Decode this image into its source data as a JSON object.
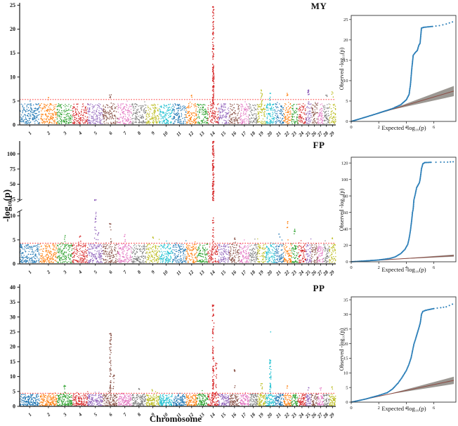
{
  "figure": {
    "xlabel": "Chromosome",
    "ylabel": "-log₁₀(p)",
    "qq_xlabel": "Expected -log₁₀(p)",
    "qq_ylabel": "Observed -log₁₀(p)"
  },
  "colors": {
    "cycle": [
      "#1f77b4",
      "#ff7f0e",
      "#2ca02c",
      "#d62728",
      "#9467bd",
      "#8c564b",
      "#e377c2",
      "#7f7f7f",
      "#bcbd22",
      "#17becf"
    ],
    "threshold_line": "#ff1a1a",
    "qq_points": "#1f77b4",
    "qq_line": "#8c4a42",
    "qq_band": "#8b8680",
    "axis": "#1a1a1a"
  },
  "chromosome_labels": [
    "1",
    "2",
    "3",
    "4",
    "5",
    "6",
    "7",
    "8",
    "9",
    "10",
    "11",
    "12",
    "13",
    "14",
    "15",
    "16",
    "17",
    "18",
    "19",
    "20",
    "21",
    "22",
    "23",
    "24",
    "25",
    "26",
    "27",
    "28",
    "29"
  ],
  "chromosome_rel_lengths": [
    158,
    136,
    121,
    120,
    120,
    117,
    110,
    113,
    105,
    103,
    106,
    87,
    84,
    84,
    85,
    81,
    75,
    66,
    64,
    72,
    69,
    61,
    52,
    62,
    42,
    51,
    45,
    46,
    51
  ],
  "chart_data": [
    {
      "type": "scatter",
      "title": "MY",
      "seed": 7,
      "manhattan": {
        "ylim": [
          0,
          25.5
        ],
        "yticks": [
          0,
          5,
          10,
          15,
          20,
          25
        ],
        "threshold": 5.3,
        "base": 4.2,
        "peaks": [
          {
            "chr": 2,
            "top": 5.7,
            "n": 3
          },
          {
            "chr": 6,
            "top": 6.3,
            "n": 6
          },
          {
            "chr": 12,
            "top": 6.2,
            "n": 3
          },
          {
            "chr": 14,
            "top": 24.7,
            "n": 120
          },
          {
            "chr": 19,
            "top": 7.3,
            "n": 12
          },
          {
            "chr": 20,
            "top": 6.6,
            "n": 7
          },
          {
            "chr": 22,
            "top": 6.6,
            "n": 4
          },
          {
            "chr": 25,
            "top": 7.3,
            "n": 14
          },
          {
            "chr": 28,
            "top": 6.2,
            "n": 3
          },
          {
            "chr": 29,
            "top": 6.9,
            "n": 4
          }
        ]
      },
      "qq": {
        "xlim": [
          0,
          7.6
        ],
        "xticks": [
          0,
          2,
          4,
          6
        ],
        "ylim": [
          0,
          26
        ],
        "yticks": [
          0,
          5,
          10,
          15,
          20,
          25
        ],
        "curve": [
          [
            0,
            0
          ],
          [
            1,
            1
          ],
          [
            2,
            2.05
          ],
          [
            3,
            3.15
          ],
          [
            3.6,
            4.1
          ],
          [
            4,
            5.3
          ],
          [
            4.2,
            6.6
          ],
          [
            4.3,
            9
          ],
          [
            4.4,
            13
          ],
          [
            4.5,
            16.2
          ],
          [
            4.65,
            16.9
          ],
          [
            4.8,
            17.4
          ],
          [
            4.9,
            18.6
          ],
          [
            5,
            19.2
          ],
          [
            5.05,
            21
          ],
          [
            5.1,
            22.9
          ],
          [
            5.3,
            23.1
          ],
          [
            5.9,
            23.3
          ],
          [
            6.4,
            23.5
          ],
          [
            6.9,
            23.9
          ],
          [
            7.35,
            24.4
          ]
        ],
        "band": {
          "x0": 2.6,
          "x1": 7.45,
          "y_lo": 6.2,
          "y_hi": 8.7
        },
        "line_end": 7.45
      }
    },
    {
      "type": "scatter",
      "title": "FP",
      "seed": 13,
      "manhattan": {
        "segments": [
          {
            "domain": [
              0,
              11
            ],
            "range": [
              0,
              0.43
            ]
          },
          {
            "domain": [
              23,
              121
            ],
            "range": [
              0.515,
              1
            ]
          }
        ],
        "yticks": [
          0,
          5,
          10,
          25,
          50,
          75,
          100
        ],
        "threshold": 4.3,
        "base": 3.9,
        "peaks": [
          {
            "chr": 3,
            "top": 5.9,
            "n": 3
          },
          {
            "chr": 4,
            "top": 5.8,
            "n": 4
          },
          {
            "chr": 5,
            "top": 24.5,
            "n": 55
          },
          {
            "chr": 5,
            "offset": 0.18,
            "top": 6.5,
            "n": 5
          },
          {
            "chr": 6,
            "top": 8.4,
            "n": 9
          },
          {
            "chr": 7,
            "top": 6.1,
            "n": 5
          },
          {
            "chr": 9,
            "top": 5.6,
            "n": 3
          },
          {
            "chr": 14,
            "top": 120.5,
            "n": 140
          },
          {
            "chr": 16,
            "top": 5.4,
            "n": 3
          },
          {
            "chr": 21,
            "top": 6.2,
            "n": 3
          },
          {
            "chr": 22,
            "top": 8.8,
            "n": 6
          },
          {
            "chr": 23,
            "top": 7.2,
            "n": 5
          },
          {
            "chr": 29,
            "top": 5.4,
            "n": 3
          }
        ]
      },
      "qq": {
        "xlim": [
          0,
          7.6
        ],
        "xticks": [
          0,
          2,
          4,
          6
        ],
        "ylim": [
          0,
          127
        ],
        "yticks": [
          0,
          20,
          40,
          60,
          80,
          100,
          120
        ],
        "curve": [
          [
            0,
            0
          ],
          [
            1,
            1
          ],
          [
            2,
            2.2
          ],
          [
            2.8,
            4
          ],
          [
            3.2,
            6
          ],
          [
            3.6,
            10
          ],
          [
            3.9,
            15
          ],
          [
            4.1,
            21
          ],
          [
            4.2,
            28
          ],
          [
            4.3,
            38
          ],
          [
            4.4,
            52
          ],
          [
            4.45,
            60
          ],
          [
            4.5,
            64
          ],
          [
            4.55,
            75
          ],
          [
            4.65,
            82
          ],
          [
            4.75,
            90
          ],
          [
            4.85,
            93
          ],
          [
            4.95,
            96
          ],
          [
            5,
            100
          ],
          [
            5.05,
            106
          ],
          [
            5.1,
            113
          ],
          [
            5.2,
            119
          ],
          [
            5.35,
            120.5
          ],
          [
            5.8,
            120.8
          ],
          [
            6.5,
            121
          ],
          [
            7,
            121
          ],
          [
            7.4,
            121.5
          ]
        ],
        "band": {
          "x0": 2.6,
          "x1": 7.45,
          "y_lo": 6.2,
          "y_hi": 8.7
        },
        "line_end": 7.45
      }
    },
    {
      "type": "scatter",
      "title": "PP",
      "seed": 21,
      "manhattan": {
        "ylim": [
          0,
          41
        ],
        "yticks": [
          0,
          5,
          10,
          15,
          20,
          25,
          30,
          35,
          40
        ],
        "threshold": 4.4,
        "base": 3.9,
        "peaks": [
          {
            "chr": 3,
            "top": 7,
            "n": 8
          },
          {
            "chr": 6,
            "top": 24.5,
            "n": 60
          },
          {
            "chr": 6,
            "offset": 0.22,
            "top": 10.5,
            "n": 10
          },
          {
            "chr": 8,
            "top": 6,
            "n": 3
          },
          {
            "chr": 9,
            "top": 5.6,
            "n": 3
          },
          {
            "chr": 14,
            "top": 34,
            "n": 80
          },
          {
            "chr": 14,
            "offset": 0.28,
            "top": 14.5,
            "n": 16
          },
          {
            "chr": 16,
            "top": 12.3,
            "n": 7
          },
          {
            "chr": 19,
            "top": 7.6,
            "n": 7
          },
          {
            "chr": 20,
            "top": 15.6,
            "n": 34
          },
          {
            "chr": 20,
            "top": 25,
            "n": 1
          },
          {
            "chr": 22,
            "top": 6.8,
            "n": 3
          },
          {
            "chr": 25,
            "top": 6.3,
            "n": 3
          },
          {
            "chr": 27,
            "top": 6.2,
            "n": 3
          },
          {
            "chr": 29,
            "top": 6.6,
            "n": 3
          }
        ]
      },
      "qq": {
        "xlim": [
          0,
          7.6
        ],
        "xticks": [
          0,
          2,
          4,
          6
        ],
        "ylim": [
          0,
          36
        ],
        "yticks": [
          0,
          5,
          10,
          15,
          20,
          25,
          30,
          35
        ],
        "curve": [
          [
            0,
            0
          ],
          [
            1,
            1
          ],
          [
            2,
            2.3
          ],
          [
            2.6,
            3.2
          ],
          [
            3,
            4.5
          ],
          [
            3.4,
            6.5
          ],
          [
            3.7,
            8.5
          ],
          [
            4,
            10.8
          ],
          [
            4.2,
            13
          ],
          [
            4.35,
            15.2
          ],
          [
            4.45,
            17.5
          ],
          [
            4.55,
            19.8
          ],
          [
            4.7,
            22
          ],
          [
            4.8,
            23.6
          ],
          [
            4.9,
            25.2
          ],
          [
            5,
            26.8
          ],
          [
            5.05,
            28.2
          ],
          [
            5.1,
            30
          ],
          [
            5.2,
            31
          ],
          [
            5.4,
            31.4
          ],
          [
            6,
            32
          ],
          [
            6.5,
            32.3
          ],
          [
            6.9,
            32.6
          ],
          [
            7.35,
            33.5
          ]
        ],
        "band": {
          "x0": 2.6,
          "x1": 7.45,
          "y_lo": 6.2,
          "y_hi": 8.7
        },
        "line_end": 7.45
      }
    }
  ]
}
